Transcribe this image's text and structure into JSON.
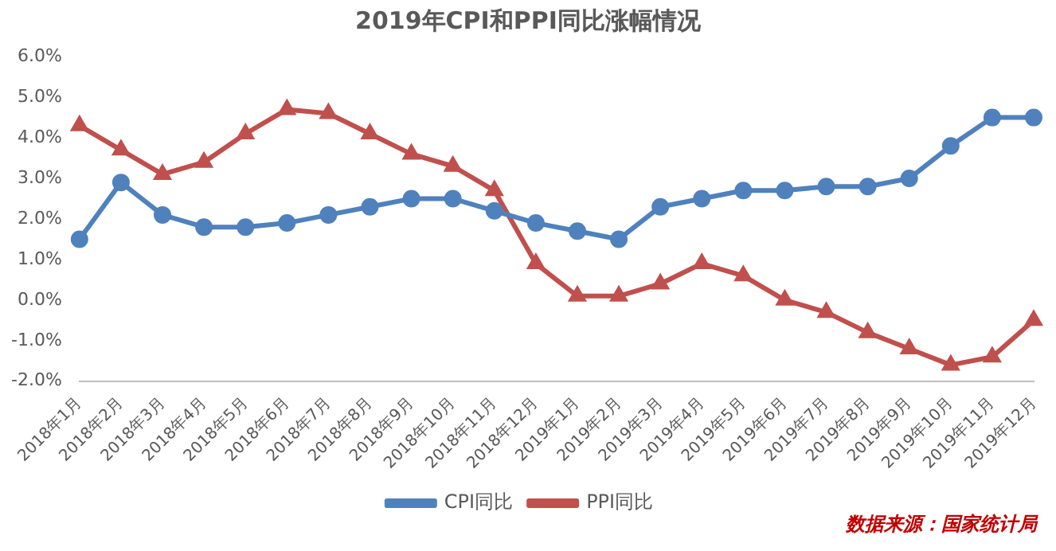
{
  "chart_data": {
    "type": "line",
    "title": "2019年CPI和PPI同比涨幅情况",
    "categories": [
      "2018年1月",
      "2018年2月",
      "2018年3月",
      "2018年4月",
      "2018年5月",
      "2018年6月",
      "2018年7月",
      "2018年8月",
      "2018年9月",
      "2018年10月",
      "2018年11月",
      "2018年12月",
      "2019年1月",
      "2019年2月",
      "2019年3月",
      "2019年4月",
      "2019年5月",
      "2019年6月",
      "2019年7月",
      "2019年8月",
      "2019年9月",
      "2019年10月",
      "2019年11月",
      "2019年12月"
    ],
    "series": [
      {
        "name": "CPI同比",
        "color": "#4f81bd",
        "marker": "circle",
        "values": [
          1.5,
          2.9,
          2.1,
          1.8,
          1.8,
          1.9,
          2.1,
          2.3,
          2.5,
          2.5,
          2.2,
          1.9,
          1.7,
          1.5,
          2.3,
          2.5,
          2.7,
          2.7,
          2.8,
          2.8,
          3.0,
          3.8,
          4.5,
          4.5
        ]
      },
      {
        "name": "PPI同比",
        "color": "#c0504d",
        "marker": "triangle",
        "values": [
          4.3,
          3.7,
          3.1,
          3.4,
          4.1,
          4.7,
          4.6,
          4.1,
          3.6,
          3.3,
          2.7,
          0.9,
          0.1,
          0.1,
          0.4,
          0.9,
          0.6,
          0.0,
          -0.3,
          -0.8,
          -1.2,
          -1.6,
          -1.4,
          -0.5
        ]
      }
    ],
    "ylim": [
      -2,
      6
    ],
    "yticks": [
      {
        "value": -2,
        "label": "-2.0%"
      },
      {
        "value": -1,
        "label": "-1.0%"
      },
      {
        "value": 0,
        "label": "0.0%"
      },
      {
        "value": 1,
        "label": "1.0%"
      },
      {
        "value": 2,
        "label": "2.0%"
      },
      {
        "value": 3,
        "label": "3.0%"
      },
      {
        "value": 4,
        "label": "4.0%"
      },
      {
        "value": 5,
        "label": "5.0%"
      },
      {
        "value": 6,
        "label": "6.0%"
      }
    ],
    "grid": false,
    "legend": "bottom",
    "annotations": [
      "数据来源：国家统计局"
    ]
  }
}
